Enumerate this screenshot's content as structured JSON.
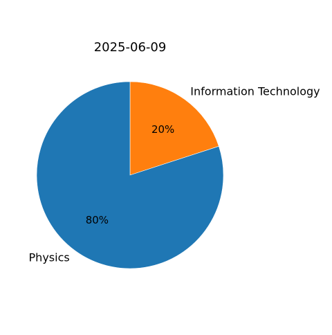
{
  "chart_data": {
    "type": "pie",
    "title": "2025-06-09",
    "start_angle_deg": 90,
    "direction": "clockwise",
    "slices": [
      {
        "label": "Information Technology",
        "value": 20,
        "pct_text": "20%",
        "color": "#ff7f0e"
      },
      {
        "label": "Physics",
        "value": 80,
        "pct_text": "80%",
        "color": "#1f77b4"
      }
    ]
  }
}
